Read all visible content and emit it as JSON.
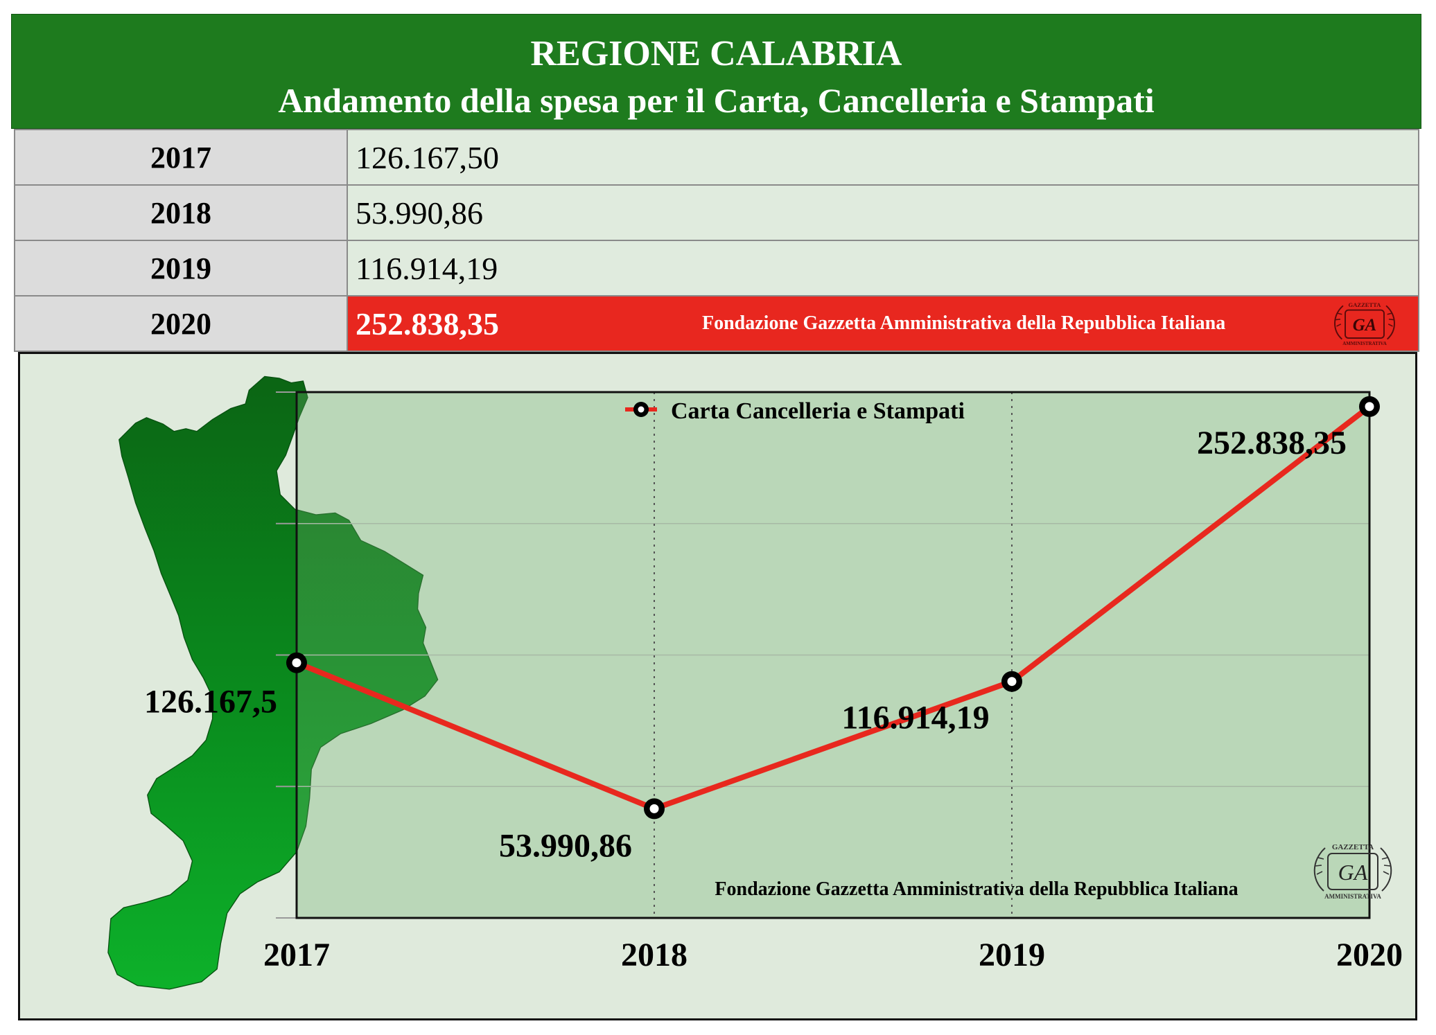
{
  "header": {
    "title": "REGIONE CALABRIA",
    "subtitle": "Andamento della spesa per il Carta, Cancelleria e Stampati"
  },
  "table": {
    "rows": [
      {
        "year": "2017",
        "value": "126.167,50"
      },
      {
        "year": "2018",
        "value": "53.990,86"
      },
      {
        "year": "2019",
        "value": "116.914,19"
      },
      {
        "year": "2020",
        "value": "252.838,35",
        "highlight": true,
        "note": "Fondazione Gazzetta Amministrativa della Repubblica Italiana"
      }
    ]
  },
  "logo": {
    "initials": "GA",
    "top_text": "GAZZETTA",
    "bottom_text": "AMMINISTRATIVA"
  },
  "colors": {
    "header": "#1e7b1e",
    "highlight": "#e8271f",
    "panel": "#dfeadc",
    "year_cell": "#dcdcdc",
    "value_cell": "#e0ebde",
    "map": "#0a8d1e"
  },
  "chart_data": {
    "type": "line",
    "categories": [
      "2017",
      "2018",
      "2019",
      "2020"
    ],
    "series": [
      {
        "name": "Carta Cancelleria e Stampati",
        "values": [
          126167.5,
          53990.86,
          116914.19,
          252838.35
        ],
        "data_labels": [
          "126.167,5",
          "53.990,86",
          "116.914,19",
          "252.838,35"
        ],
        "color": "#e8281e"
      }
    ],
    "ylim": [
      0,
      260000
    ],
    "grid": true,
    "legend": "top-center",
    "annotation": "Fondazione Gazzetta Amministrativa della Repubblica Italiana"
  }
}
